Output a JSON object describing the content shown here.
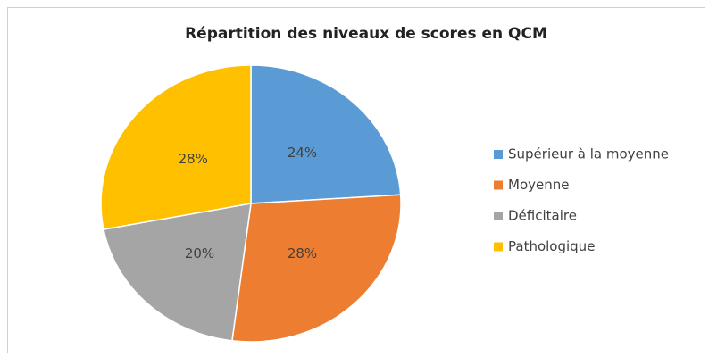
{
  "chart_data": {
    "type": "pie",
    "title": "Répartition des niveaux de scores en QCM",
    "categories": [
      "Supérieur à la moyenne",
      "Moyenne",
      "Déficitaire",
      "Pathologique"
    ],
    "values": [
      24,
      28,
      20,
      28
    ],
    "value_labels": [
      "24%",
      "28%",
      "20%",
      "28%"
    ],
    "colors": [
      "#5b9bd5",
      "#ed7d31",
      "#a5a5a5",
      "#ffc000"
    ],
    "legend": "right"
  }
}
